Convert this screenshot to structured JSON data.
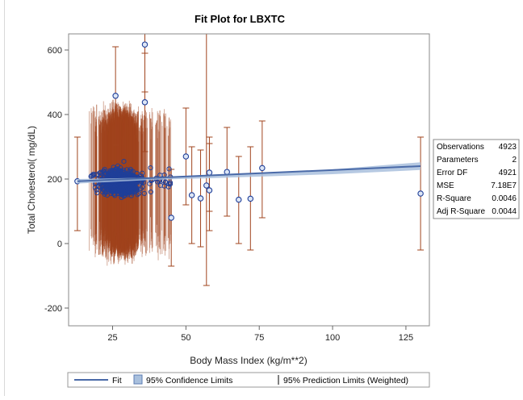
{
  "chart_data": {
    "type": "scatter",
    "title": "Fit Plot for LBXTC",
    "xlabel": "Body Mass Index (kg/m**2)",
    "ylabel": "Total Cholesterol( mg/dL)",
    "xlim": [
      10,
      133
    ],
    "ylim": [
      -255,
      650
    ],
    "x_ticks": [
      25,
      50,
      75,
      100,
      125
    ],
    "y_ticks": [
      -200,
      0,
      200,
      400,
      600
    ],
    "grid": false,
    "legend_position": "bottom",
    "colors": {
      "points": "#1f3f99",
      "prediction_limits": "#a0441e",
      "fit_line": "#4a6aa8",
      "confidence_band": "#a9c0dd"
    },
    "fit": {
      "name": "Fit",
      "x": [
        13,
        130
      ],
      "y": [
        193,
        240
      ]
    },
    "confidence_band": {
      "name": "95% Confidence Limits",
      "x": [
        13,
        40,
        60,
        80,
        100,
        130
      ],
      "lower": [
        186,
        198,
        203,
        209,
        215,
        228
      ],
      "upper": [
        200,
        205,
        212,
        219,
        230,
        252
      ]
    },
    "outlier_points": [
      {
        "x": 13,
        "y": 193,
        "lower": 40,
        "upper": 330
      },
      {
        "x": 36,
        "y": 617,
        "lower": 470,
        "upper": 760
      },
      {
        "x": 36,
        "y": 438,
        "lower": 285,
        "upper": 590
      },
      {
        "x": 26,
        "y": 458,
        "lower": 305,
        "upper": 610
      },
      {
        "x": 45,
        "y": 80,
        "lower": -70,
        "upper": 230
      },
      {
        "x": 50,
        "y": 270,
        "lower": 120,
        "upper": 420
      },
      {
        "x": 52,
        "y": 150,
        "lower": 0,
        "upper": 300
      },
      {
        "x": 55,
        "y": 140,
        "lower": -10,
        "upper": 290
      },
      {
        "x": 57,
        "y": 180,
        "lower": -130,
        "upper": 652
      },
      {
        "x": 58,
        "y": 165,
        "lower": 40,
        "upper": 310
      },
      {
        "x": 58,
        "y": 220,
        "lower": 100,
        "upper": 330
      },
      {
        "x": 64,
        "y": 222,
        "lower": 85,
        "upper": 360
      },
      {
        "x": 68,
        "y": 136,
        "lower": 0,
        "upper": 270
      },
      {
        "x": 72,
        "y": 139,
        "lower": -20,
        "upper": 300
      },
      {
        "x": 76,
        "y": 234,
        "lower": 80,
        "upper": 380
      },
      {
        "x": 130,
        "y": 155,
        "lower": -20,
        "upper": 330
      }
    ],
    "stats_table": [
      {
        "label": "Observations",
        "value": "4923"
      },
      {
        "label": "Parameters",
        "value": "2"
      },
      {
        "label": "Error DF",
        "value": "4921"
      },
      {
        "label": "MSE",
        "value": "7.18E7"
      },
      {
        "label": "R-Square",
        "value": "0.0046"
      },
      {
        "label": "Adj R-Square",
        "value": "0.0044"
      }
    ],
    "legend": [
      {
        "label": "Fit",
        "symbol": "line"
      },
      {
        "label": "95% Confidence Limits",
        "symbol": "band"
      },
      {
        "label": "95% Prediction Limits (Weighted)",
        "symbol": "bar"
      }
    ]
  }
}
